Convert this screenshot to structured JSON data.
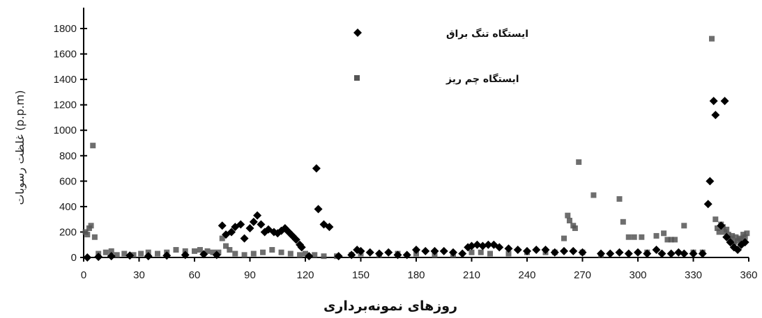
{
  "chart_data": {
    "type": "scatter",
    "title": "",
    "xlabel": "روزهای نمونه‌برداری",
    "ylabel": "غلظت رسوبات (p.p.m)",
    "xlim": [
      0,
      360
    ],
    "ylim": [
      0,
      1800
    ],
    "x_ticks": [
      0,
      30,
      60,
      90,
      120,
      150,
      180,
      210,
      240,
      270,
      300,
      330,
      360
    ],
    "y_ticks": [
      0,
      200,
      400,
      600,
      800,
      1000,
      1200,
      1400,
      1600,
      1800
    ],
    "grid": false,
    "legend_position": "top-center",
    "series": [
      {
        "name": "ایستگاه تنگ براق",
        "marker": "diamond",
        "color": "#000000",
        "points": [
          [
            2,
            0
          ],
          [
            8,
            5
          ],
          [
            15,
            10
          ],
          [
            25,
            15
          ],
          [
            35,
            10
          ],
          [
            45,
            15
          ],
          [
            55,
            20
          ],
          [
            65,
            25
          ],
          [
            72,
            20
          ],
          [
            75,
            250
          ],
          [
            77,
            180
          ],
          [
            80,
            200
          ],
          [
            82,
            240
          ],
          [
            85,
            260
          ],
          [
            87,
            150
          ],
          [
            90,
            230
          ],
          [
            92,
            280
          ],
          [
            94,
            330
          ],
          [
            96,
            260
          ],
          [
            98,
            200
          ],
          [
            100,
            220
          ],
          [
            103,
            200
          ],
          [
            105,
            190
          ],
          [
            107,
            210
          ],
          [
            109,
            230
          ],
          [
            111,
            200
          ],
          [
            113,
            170
          ],
          [
            115,
            140
          ],
          [
            117,
            100
          ],
          [
            118,
            80
          ],
          [
            122,
            10
          ],
          [
            126,
            700
          ],
          [
            127,
            380
          ],
          [
            130,
            260
          ],
          [
            133,
            240
          ],
          [
            138,
            10
          ],
          [
            145,
            20
          ],
          [
            148,
            60
          ],
          [
            150,
            50
          ],
          [
            155,
            40
          ],
          [
            160,
            30
          ],
          [
            165,
            40
          ],
          [
            170,
            20
          ],
          [
            175,
            20
          ],
          [
            180,
            60
          ],
          [
            185,
            50
          ],
          [
            190,
            50
          ],
          [
            195,
            50
          ],
          [
            200,
            40
          ],
          [
            205,
            30
          ],
          [
            208,
            80
          ],
          [
            210,
            90
          ],
          [
            213,
            100
          ],
          [
            216,
            90
          ],
          [
            219,
            100
          ],
          [
            222,
            100
          ],
          [
            225,
            80
          ],
          [
            230,
            70
          ],
          [
            235,
            60
          ],
          [
            240,
            50
          ],
          [
            245,
            60
          ],
          [
            250,
            60
          ],
          [
            255,
            40
          ],
          [
            260,
            50
          ],
          [
            265,
            50
          ],
          [
            270,
            40
          ],
          [
            280,
            30
          ],
          [
            285,
            30
          ],
          [
            290,
            40
          ],
          [
            295,
            30
          ],
          [
            300,
            40
          ],
          [
            305,
            30
          ],
          [
            310,
            60
          ],
          [
            313,
            30
          ],
          [
            318,
            30
          ],
          [
            322,
            40
          ],
          [
            325,
            30
          ],
          [
            330,
            30
          ],
          [
            335,
            30
          ],
          [
            338,
            420
          ],
          [
            339,
            600
          ],
          [
            341,
            1230
          ],
          [
            342,
            1120
          ],
          [
            345,
            250
          ],
          [
            347,
            1230
          ],
          [
            348,
            160
          ],
          [
            350,
            120
          ],
          [
            352,
            80
          ],
          [
            354,
            60
          ],
          [
            356,
            100
          ],
          [
            358,
            120
          ]
        ]
      },
      {
        "name": "ایستگاه چم ریز",
        "marker": "square",
        "color": "#555555",
        "points": [
          [
            1,
            200
          ],
          [
            2,
            180
          ],
          [
            3,
            230
          ],
          [
            4,
            250
          ],
          [
            5,
            880
          ],
          [
            6,
            160
          ],
          [
            8,
            30
          ],
          [
            12,
            40
          ],
          [
            15,
            50
          ],
          [
            18,
            20
          ],
          [
            22,
            30
          ],
          [
            27,
            20
          ],
          [
            31,
            30
          ],
          [
            35,
            40
          ],
          [
            40,
            30
          ],
          [
            45,
            40
          ],
          [
            50,
            60
          ],
          [
            55,
            50
          ],
          [
            60,
            50
          ],
          [
            63,
            60
          ],
          [
            67,
            50
          ],
          [
            70,
            40
          ],
          [
            73,
            40
          ],
          [
            75,
            150
          ],
          [
            77,
            90
          ],
          [
            79,
            60
          ],
          [
            82,
            30
          ],
          [
            87,
            20
          ],
          [
            92,
            30
          ],
          [
            97,
            40
          ],
          [
            102,
            60
          ],
          [
            107,
            40
          ],
          [
            112,
            30
          ],
          [
            117,
            20
          ],
          [
            120,
            30
          ],
          [
            125,
            20
          ],
          [
            130,
            10
          ],
          [
            137,
            10
          ],
          [
            145,
            20
          ],
          [
            150,
            30
          ],
          [
            160,
            20
          ],
          [
            170,
            30
          ],
          [
            180,
            30
          ],
          [
            190,
            20
          ],
          [
            200,
            20
          ],
          [
            210,
            40
          ],
          [
            215,
            40
          ],
          [
            220,
            30
          ],
          [
            230,
            30
          ],
          [
            240,
            40
          ],
          [
            250,
            40
          ],
          [
            255,
            40
          ],
          [
            260,
            150
          ],
          [
            262,
            330
          ],
          [
            263,
            290
          ],
          [
            265,
            250
          ],
          [
            266,
            230
          ],
          [
            268,
            750
          ],
          [
            270,
            40
          ],
          [
            276,
            490
          ],
          [
            280,
            20
          ],
          [
            290,
            460
          ],
          [
            292,
            280
          ],
          [
            295,
            160
          ],
          [
            298,
            160
          ],
          [
            302,
            160
          ],
          [
            305,
            40
          ],
          [
            310,
            170
          ],
          [
            314,
            190
          ],
          [
            316,
            140
          ],
          [
            318,
            140
          ],
          [
            320,
            140
          ],
          [
            325,
            250
          ],
          [
            330,
            40
          ],
          [
            335,
            40
          ],
          [
            340,
            1720
          ],
          [
            342,
            300
          ],
          [
            343,
            230
          ],
          [
            344,
            200
          ],
          [
            345,
            260
          ],
          [
            346,
            240
          ],
          [
            347,
            200
          ],
          [
            348,
            220
          ],
          [
            349,
            180
          ],
          [
            350,
            150
          ],
          [
            351,
            170
          ],
          [
            352,
            120
          ],
          [
            353,
            160
          ],
          [
            354,
            130
          ],
          [
            355,
            150
          ],
          [
            356,
            140
          ],
          [
            357,
            180
          ],
          [
            358,
            160
          ],
          [
            359,
            190
          ]
        ]
      }
    ]
  }
}
